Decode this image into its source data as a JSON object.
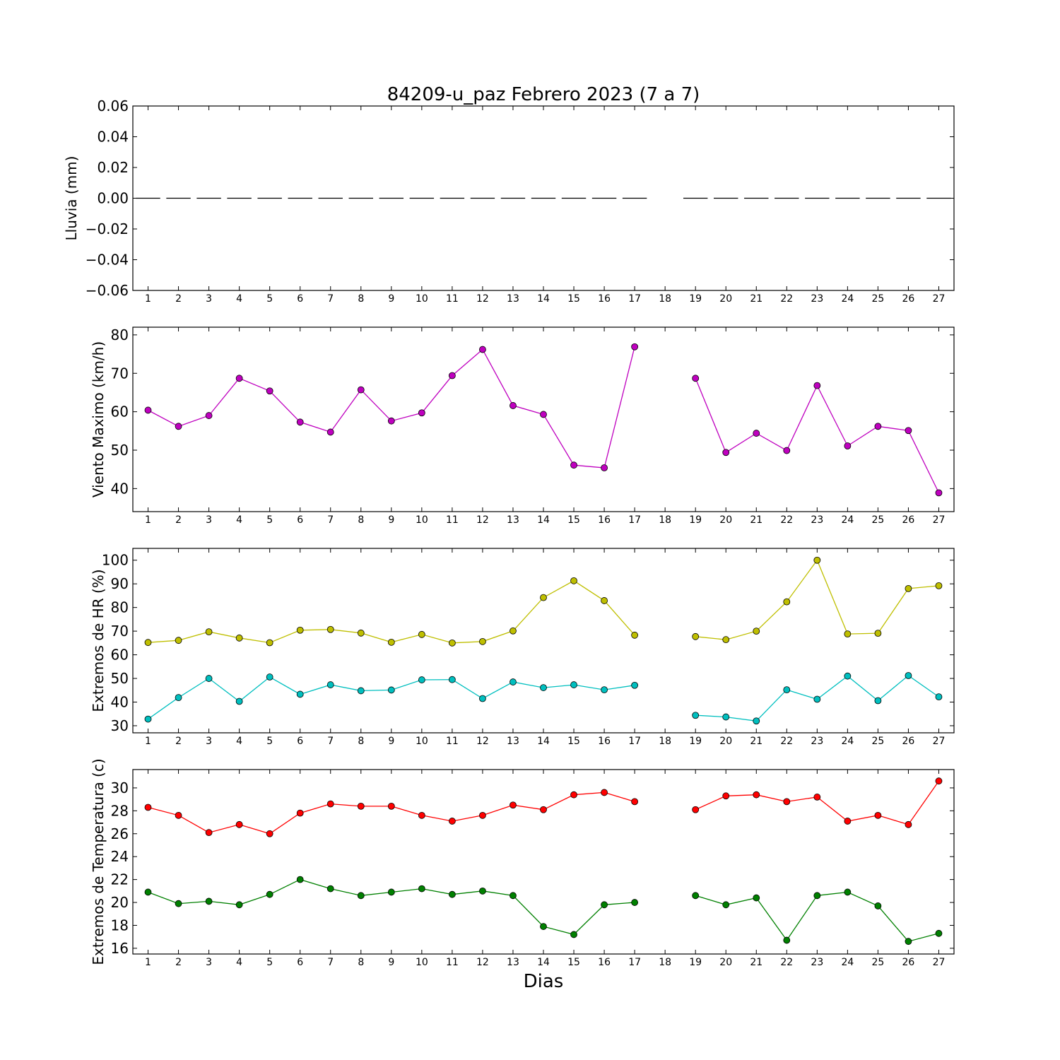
{
  "figure": {
    "title": "84209-u_paz Febrero 2023  (7 a 7)",
    "xlabel": "Dias"
  },
  "chart_data": [
    {
      "type": "line",
      "ylabel": "Lluvia (mm)",
      "ylim": [
        -0.06,
        0.06
      ],
      "yticks": [
        "0.06",
        "0.04",
        "0.02",
        "0.00",
        "−0.02",
        "−0.04",
        "−0.06"
      ],
      "ytick_values": [
        0.06,
        0.04,
        0.02,
        0.0,
        -0.02,
        -0.04,
        -0.06
      ],
      "categories": [
        "1",
        "2",
        "3",
        "4",
        "5",
        "6",
        "7",
        "8",
        "9",
        "10",
        "11",
        "12",
        "13",
        "14",
        "15",
        "16",
        "17",
        "18",
        "19",
        "20",
        "21",
        "22",
        "23",
        "24",
        "25",
        "26",
        "27"
      ],
      "grid": false,
      "series": [
        {
          "style": "bar",
          "color": "#000000",
          "values": [
            0,
            0,
            0,
            0,
            0,
            0,
            0,
            0,
            0,
            0,
            0,
            0,
            0,
            0,
            0,
            0,
            0,
            null,
            0,
            0,
            0,
            0,
            0,
            0,
            0,
            0,
            0
          ]
        }
      ]
    },
    {
      "type": "line",
      "ylabel": "Viento Maximo (km/h)",
      "ylim": [
        34,
        82
      ],
      "yticks": [
        "80",
        "70",
        "60",
        "50",
        "40"
      ],
      "ytick_values": [
        80,
        70,
        60,
        50,
        40
      ],
      "categories": [
        "1",
        "2",
        "3",
        "4",
        "5",
        "6",
        "7",
        "8",
        "9",
        "10",
        "11",
        "12",
        "13",
        "14",
        "15",
        "16",
        "17",
        "18",
        "19",
        "20",
        "21",
        "22",
        "23",
        "24",
        "25",
        "26",
        "27"
      ],
      "grid": false,
      "series": [
        {
          "color": "#bf00bf",
          "values": [
            60.4,
            56.2,
            59.0,
            68.7,
            65.4,
            57.3,
            54.7,
            65.7,
            57.6,
            59.7,
            69.4,
            76.2,
            61.6,
            59.3,
            46.1,
            45.4,
            76.9,
            null,
            68.7,
            49.4,
            54.4,
            49.9,
            66.8,
            51.1,
            56.2,
            55.1,
            38.9
          ]
        }
      ]
    },
    {
      "type": "line",
      "ylabel": "Extremos de HR (%)",
      "ylim": [
        27,
        105
      ],
      "yticks": [
        "100",
        "90",
        "80",
        "70",
        "60",
        "50",
        "40",
        "30"
      ],
      "ytick_values": [
        100,
        90,
        80,
        70,
        60,
        50,
        40,
        30
      ],
      "categories": [
        "1",
        "2",
        "3",
        "4",
        "5",
        "6",
        "7",
        "8",
        "9",
        "10",
        "11",
        "12",
        "13",
        "14",
        "15",
        "16",
        "17",
        "18",
        "19",
        "20",
        "21",
        "22",
        "23",
        "24",
        "25",
        "26",
        "27"
      ],
      "grid": false,
      "series": [
        {
          "color": "#bfbf00",
          "values": [
            65.2,
            66.1,
            69.7,
            67.1,
            65.1,
            70.4,
            70.7,
            69.2,
            65.3,
            68.6,
            65.0,
            65.6,
            70.1,
            84.2,
            91.3,
            82.9,
            68.3,
            null,
            67.7,
            66.4,
            70.0,
            82.4,
            100.0,
            68.8,
            69.1,
            88.0,
            89.2
          ]
        },
        {
          "color": "#00bfbf",
          "values": [
            32.8,
            41.9,
            50.0,
            40.3,
            50.6,
            43.3,
            47.3,
            44.8,
            45.1,
            49.4,
            49.5,
            41.5,
            48.5,
            46.1,
            47.3,
            45.2,
            47.1,
            null,
            34.4,
            33.7,
            32.0,
            45.2,
            41.2,
            51.0,
            40.6,
            51.2,
            42.2
          ]
        }
      ]
    },
    {
      "type": "line",
      "ylabel": "Extremos de Temperatura (c)",
      "ylim": [
        15.5,
        31.6
      ],
      "yticks": [
        "30",
        "28",
        "26",
        "24",
        "22",
        "20",
        "18",
        "16"
      ],
      "ytick_values": [
        30,
        28,
        26,
        24,
        22,
        20,
        18,
        16
      ],
      "categories": [
        "1",
        "2",
        "3",
        "4",
        "5",
        "6",
        "7",
        "8",
        "9",
        "10",
        "11",
        "12",
        "13",
        "14",
        "15",
        "16",
        "17",
        "18",
        "19",
        "20",
        "21",
        "22",
        "23",
        "24",
        "25",
        "26",
        "27"
      ],
      "grid": false,
      "series": [
        {
          "color": "#ff0000",
          "values": [
            28.3,
            27.6,
            26.1,
            26.8,
            26.0,
            27.8,
            28.6,
            28.4,
            28.4,
            27.6,
            27.1,
            27.6,
            28.5,
            28.1,
            29.4,
            29.6,
            28.8,
            null,
            28.1,
            29.3,
            29.4,
            28.8,
            29.2,
            27.1,
            27.6,
            26.8,
            30.6
          ]
        },
        {
          "color": "#008000",
          "values": [
            20.9,
            19.9,
            20.1,
            19.8,
            20.7,
            22.0,
            21.2,
            20.6,
            20.9,
            21.2,
            20.7,
            21.0,
            20.6,
            17.9,
            17.2,
            19.8,
            20.0,
            null,
            20.6,
            19.8,
            20.4,
            16.7,
            20.6,
            20.9,
            19.7,
            16.6,
            17.3
          ]
        }
      ]
    }
  ]
}
